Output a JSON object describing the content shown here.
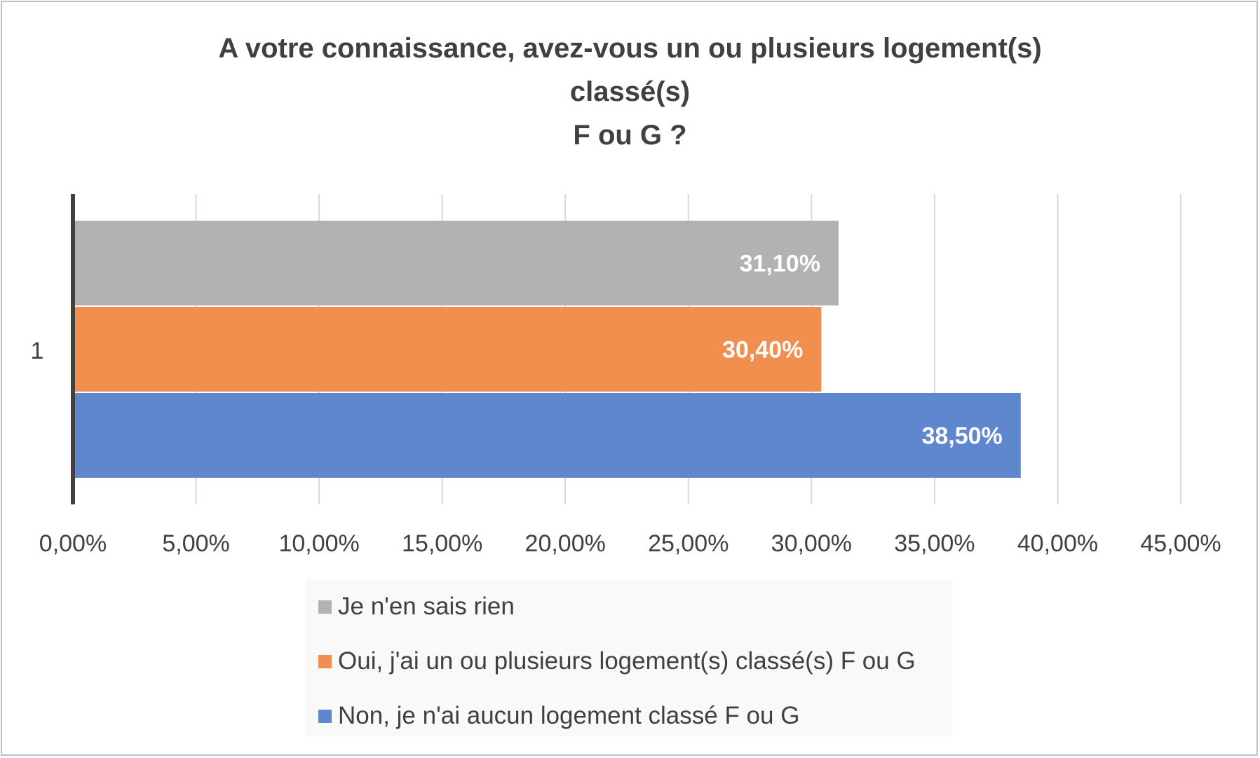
{
  "chart_data": {
    "type": "bar",
    "orientation": "horizontal",
    "title": [
      "A votre connaissance, avez-vous un ou plusieurs logement(s)",
      "classé(s)",
      "F ou G ?"
    ],
    "categories": [
      "1"
    ],
    "series": [
      {
        "name": "Je n'en sais rien",
        "values": [
          31.1
        ],
        "label": "31,10%",
        "color": "#b2b2b2"
      },
      {
        "name": "Oui, j'ai un ou plusieurs logement(s) classé(s) F ou G",
        "values": [
          30.4
        ],
        "label": "30,40%",
        "color": "#f08f4e"
      },
      {
        "name": "Non, je n'ai aucun logement classé F ou G",
        "values": [
          38.5
        ],
        "label": "38,50%",
        "color": "#5f87cd"
      }
    ],
    "x_ticks": [
      0,
      5,
      10,
      15,
      20,
      25,
      30,
      35,
      40,
      45
    ],
    "x_tick_labels": [
      "0,00%",
      "5,00%",
      "10,00%",
      "15,00%",
      "20,00%",
      "25,00%",
      "30,00%",
      "35,00%",
      "40,00%",
      "45,00%"
    ],
    "xlim": [
      0,
      45
    ],
    "grid": true,
    "legend_position": "bottom",
    "xlabel": "",
    "ylabel": ""
  }
}
